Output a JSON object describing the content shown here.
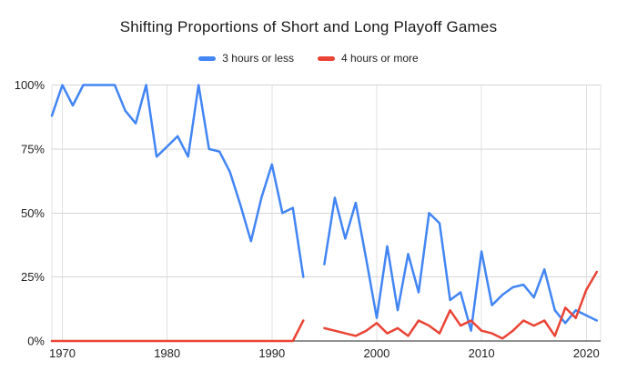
{
  "chart_data": {
    "type": "line",
    "title": "Shifting Proportions of Short and Long Playoff Games",
    "x": [
      1969,
      1970,
      1971,
      1972,
      1973,
      1974,
      1975,
      1976,
      1977,
      1978,
      1979,
      1980,
      1981,
      1982,
      1983,
      1984,
      1985,
      1986,
      1987,
      1988,
      1989,
      1990,
      1991,
      1992,
      1993,
      1994,
      1995,
      1996,
      1997,
      1998,
      1999,
      2000,
      2001,
      2002,
      2003,
      2004,
      2005,
      2006,
      2007,
      2008,
      2009,
      2010,
      2011,
      2012,
      2013,
      2014,
      2015,
      2016,
      2017,
      2018,
      2019,
      2020,
      2021
    ],
    "series": [
      {
        "name": "3 hours or less",
        "color": "#4285f4",
        "values": [
          88,
          100,
          92,
          100,
          100,
          100,
          100,
          90,
          85,
          100,
          72,
          76,
          80,
          72,
          100,
          75,
          74,
          66,
          53,
          39,
          56,
          69,
          50,
          52,
          25,
          null,
          30,
          56,
          40,
          54,
          32,
          9,
          37,
          12,
          34,
          19,
          50,
          46,
          16,
          19,
          4,
          35,
          14,
          18,
          21,
          22,
          17,
          28,
          12,
          7,
          12,
          10,
          8
        ]
      },
      {
        "name": "4 hours or more",
        "color": "#ea4335",
        "values": [
          0,
          0,
          0,
          0,
          0,
          0,
          0,
          0,
          0,
          0,
          0,
          0,
          0,
          0,
          0,
          0,
          0,
          0,
          0,
          0,
          0,
          0,
          0,
          0,
          8,
          null,
          5,
          4,
          3,
          2,
          4,
          7,
          3,
          5,
          2,
          8,
          6,
          3,
          12,
          6,
          8,
          4,
          3,
          1,
          4,
          8,
          6,
          8,
          2,
          13,
          9,
          20,
          27
        ]
      }
    ],
    "note_gap_year": 1994,
    "yticks": [
      0,
      25,
      50,
      75,
      100
    ],
    "ytick_labels": [
      "0%",
      "25%",
      "50%",
      "75%",
      "100%"
    ],
    "xticks": [
      1970,
      1980,
      1990,
      2000,
      2010,
      2020
    ],
    "ylim": [
      0,
      100
    ],
    "xlim": [
      1969,
      2021.5
    ],
    "grid": true,
    "legend_position": "top",
    "xlabel": "",
    "ylabel": ""
  },
  "colors": {
    "background": "#ffffff",
    "gridline": "#d6d6d6",
    "vertical_gridline": "#e0e0e0",
    "axis_line": "#212121",
    "tick_label": "#1f1f1f",
    "title_text": "#1a1a1a",
    "legend_text": "#202124"
  }
}
